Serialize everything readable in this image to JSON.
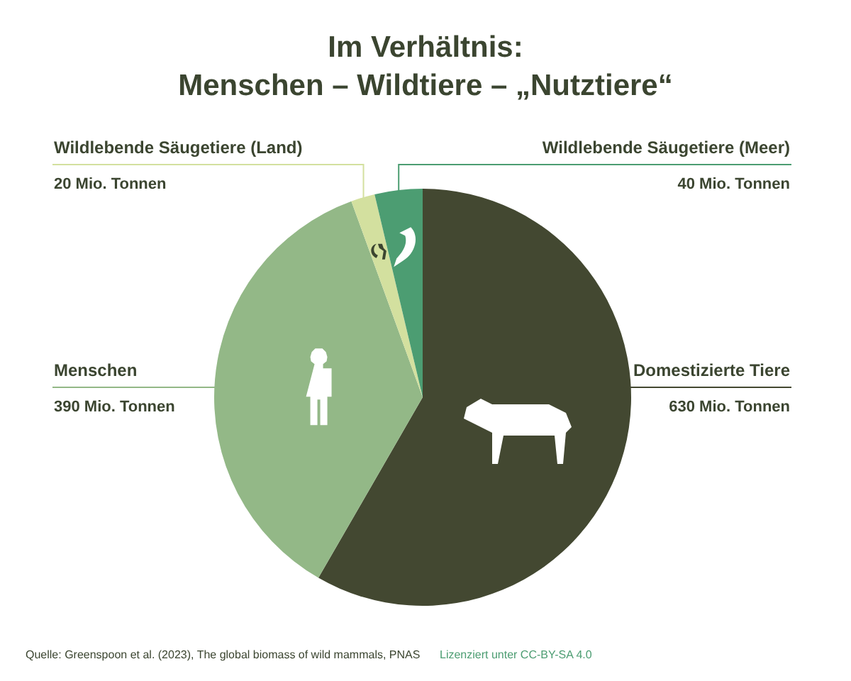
{
  "chart_data": {
    "type": "pie",
    "title": "Im Verhältnis:\nMenschen – Wildtiere – „Nutztiere“",
    "categories": [
      "Domestizierte Tiere",
      "Menschen",
      "Wildlebende Säugetiere (Land)",
      "Wildlebende Säugetiere (Meer)"
    ],
    "values": [
      630,
      390,
      20,
      40
    ],
    "colors": [
      "#434831",
      "#93b887",
      "#d3e09f",
      "#4c9d72"
    ],
    "value_labels": [
      "630 Mio. Tonnen",
      "390 Mio. Tonnen",
      "20 Mio. Tonnen",
      "40 Mio. Tonnen"
    ],
    "legend": false,
    "annotations": [
      "Quelle: Greenspoon et al. (2023), The global biomass of wild mammals, PNAS",
      "Lizenziert unter CC-BY-SA 4.0"
    ]
  }
}
